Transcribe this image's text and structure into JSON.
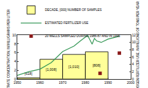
{
  "chart_data": {
    "type": "bar",
    "y_label": "MEDIAN NITRATE CONCENTRATION, IN MILLIGRAMS PER LITER",
    "y2_label": "ESTIMATED NITROGEN FERTILIZER USE, IN MILLIONS OF TONS PER YEAR",
    "xlim": [
      1950,
      2000
    ],
    "xticks": [
      1950,
      1960,
      1970,
      1980,
      1990,
      2000
    ],
    "ylim": [
      0,
      10
    ],
    "yticks": [
      0,
      2,
      4,
      6,
      8,
      10
    ],
    "y2lim": [
      0,
      12
    ],
    "y2ticks": [
      0,
      2,
      4,
      6,
      8,
      10,
      12
    ],
    "grid": false,
    "legend": "top left",
    "series": [
      {
        "name": "DECADE, [000] NUMBER OF SAMPLES",
        "type": "bar",
        "color": "#ffff99",
        "x": [
          1950,
          1960,
          1970,
          1980
        ],
        "x_end": [
          1960,
          1970,
          1980,
          1990
        ],
        "values": [
          0.3,
          4.5,
          5.6,
          6.2
        ],
        "sample_labels": [
          "[618]",
          "[1,008]",
          "[1,010]",
          "[808]"
        ]
      },
      {
        "name": "ESTIMATED FERTILIZER USE",
        "type": "line",
        "color": "#3a9a5a",
        "axis": "y2",
        "x": [
          1950,
          1955,
          1960,
          1965,
          1970,
          1975,
          1978,
          1980,
          1981,
          1983,
          1984,
          1985,
          1987,
          1990,
          1993,
          1995
        ],
        "values": [
          1.0,
          2.0,
          2.7,
          4.5,
          7.5,
          9.0,
          10.5,
          11.4,
          11.9,
          9.5,
          11.1,
          10.4,
          10.0,
          10.9,
          11.3,
          11.7
        ]
      },
      {
        "name": "20 WELLS SAMPLED DURING 1986-87 AND IN 1995",
        "type": "scatter",
        "marker": "square",
        "color": "#8b1a1a",
        "x": [
          1986.5,
          1995
        ],
        "values": [
          1.3,
          5.9
        ]
      }
    ]
  }
}
